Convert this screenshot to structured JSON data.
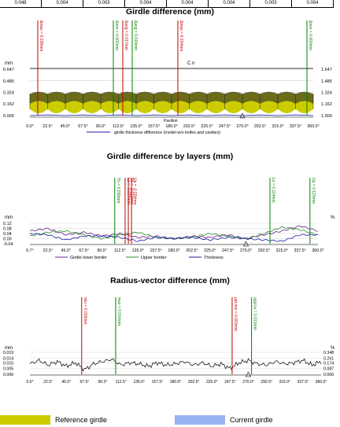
{
  "header_row": [
    "0.048",
    "0.004",
    "0.003",
    "0.004",
    "0.004",
    "0.004",
    "0.003",
    "0.004"
  ],
  "charts": {
    "girdle": {
      "title": "Girdle difference (mm)",
      "yunit": "mm",
      "yticks_left": [
        "0.647",
        "0.485",
        "0.324",
        "0.162",
        "0.000"
      ],
      "yticks_right": [
        "1.647",
        "1.485",
        "1.324",
        "1.162",
        "1.000"
      ],
      "section_label": "Pavilion",
      "crown_label": "C   n",
      "xticks": [
        "0.0°",
        "22.5°",
        "45.0°",
        "67.5°",
        "90.0°",
        "112.5°",
        "135.0°",
        "157.5°",
        "180.0°",
        "202.5°",
        "225.0°",
        "247.5°",
        "270.0°",
        "292.5°",
        "315.0°",
        "337.5°",
        "360.0°"
      ],
      "legend_line": "girdle thickness difference (model w/o knifes and cavities)",
      "markers": [
        {
          "label": "Δmax = 0.038mm",
          "angle": 10,
          "color": "#c00000"
        },
        {
          "label": "Δmin = 0.000mm",
          "angle": 106,
          "color": "#008000"
        },
        {
          "label": "Δavg = 0.017mm",
          "angle": 118,
          "color": "#c00000"
        },
        {
          "label": "Δavg = 0.019mm",
          "angle": 130,
          "color": "#008000"
        },
        {
          "label": "Δmax = 0.034mm",
          "angle": 188,
          "color": "#c00000"
        },
        {
          "label": "Δmin = 0.000mm",
          "angle": 352,
          "color": "#008000"
        }
      ]
    },
    "layers": {
      "title": "Girdle difference by layers (mm)",
      "yunit": "mm",
      "yunit_right": "%",
      "yticks_left": [
        "0.12",
        "0.08",
        "0.04",
        "0.00",
        "-0.04"
      ],
      "xticks": [
        "0.7°",
        "22.5°",
        "45.0°",
        "67.5°",
        "90.0°",
        "112.5°",
        "135.0°",
        "157.5°",
        "180.0°",
        "202.5°",
        "225.0°",
        "247.5°",
        "270.0°",
        "292.5°",
        "315.0°",
        "337.5°",
        "360.0°"
      ],
      "legend": [
        "Girdle lower border",
        "Upper border",
        "Thickness"
      ],
      "markers": [
        {
          "label": "Th = 0.039mm",
          "angle": 106,
          "color": "#008000"
        },
        {
          "label": "Lo = -0.034mm",
          "angle": 119,
          "color": "#c00000"
        },
        {
          "label": "Th = -0.019mm",
          "angle": 123,
          "color": "#c00000"
        },
        {
          "label": "Up = -0.034mm",
          "angle": 127,
          "color": "#c00000"
        },
        {
          "label": "Lo = 0.114mm",
          "angle": 300,
          "color": "#008000"
        },
        {
          "label": "Up = 0.123mm",
          "angle": 350,
          "color": "#008000"
        }
      ]
    },
    "radius": {
      "title": "Radius-vector difference (mm)",
      "yunit": "mm",
      "yunit_right": "%",
      "yticks_left": [
        "0.019",
        "0.014",
        "0.010",
        "0.005",
        "0.000"
      ],
      "yticks_right": [
        "0.348",
        "0.261",
        "0.174",
        "0.087",
        "0.000"
      ],
      "xticks": [
        "0.0°",
        "22.5°",
        "45.0°",
        "67.5°",
        "90.0°",
        "112.5°",
        "135.0°",
        "157.5°",
        "180.0°",
        "202.5°",
        "225.0°",
        "247.5°",
        "270.0°",
        "292.5°",
        "315.0°",
        "337.5°",
        "360.0°"
      ],
      "markers": [
        {
          "label": "min = 0.002mm",
          "angle": 64,
          "color": "#c00000"
        },
        {
          "label": "max = 0.014mm",
          "angle": 106,
          "color": "#008000"
        },
        {
          "label": "ppt.min = 0.003mm",
          "angle": 250,
          "color": "#c00000"
        },
        {
          "label": "approx = 0.013mm",
          "angle": 274,
          "color": "#008000"
        }
      ]
    }
  },
  "chart_data": [
    {
      "type": "area",
      "title": "Girdle difference (mm)",
      "x": [
        0,
        22.5,
        45,
        67.5,
        90,
        112.5,
        135,
        157.5,
        180,
        202.5,
        225,
        247.5,
        270,
        292.5,
        315,
        337.5,
        360
      ],
      "series": [
        {
          "name": "Reference girdle",
          "values": [
            0.32,
            0.22,
            0.32,
            0.22,
            0.32,
            0.22,
            0.32,
            0.22,
            0.32,
            0.22,
            0.32,
            0.22,
            0.32,
            0.22,
            0.32,
            0.22,
            0.32
          ]
        },
        {
          "name": "Current girdle",
          "values": [
            0.3,
            0.24,
            0.3,
            0.24,
            0.3,
            0.24,
            0.3,
            0.24,
            0.3,
            0.24,
            0.3,
            0.24,
            0.3,
            0.24,
            0.3,
            0.24,
            0.3
          ]
        },
        {
          "name": "girdle thickness difference (model w/o knifes and cavities)",
          "values": [
            0.0,
            0.01,
            0.0,
            0.01,
            0.0,
            0.01,
            0.0,
            0.01,
            0.0,
            0.01,
            0.0,
            0.01,
            0.0,
            0.01,
            0.0,
            0.01,
            0.0
          ]
        }
      ],
      "ylim": [
        0,
        0.647
      ]
    },
    {
      "type": "line",
      "title": "Girdle difference by layers (mm)",
      "x": [
        0,
        22.5,
        45,
        67.5,
        90,
        112.5,
        135,
        157.5,
        180,
        202.5,
        225,
        247.5,
        270,
        292.5,
        315,
        337.5,
        360
      ],
      "series": [
        {
          "name": "Girdle lower border",
          "values": [
            0.06,
            0.08,
            0.03,
            0.05,
            0.02,
            0.04,
            0.01,
            0.02,
            0.0,
            0.02,
            0.01,
            0.03,
            0.0,
            0.03,
            0.06,
            0.1,
            0.06
          ]
        },
        {
          "name": "Upper border",
          "values": [
            0.02,
            0.05,
            0.06,
            0.03,
            0.0,
            0.03,
            0.05,
            0.01,
            0.0,
            0.01,
            0.04,
            0.02,
            0.0,
            0.04,
            0.09,
            0.07,
            0.03
          ]
        },
        {
          "name": "Thickness",
          "values": [
            0.04,
            0.03,
            -0.01,
            0.02,
            0.02,
            0.01,
            -0.02,
            0.01,
            0.0,
            0.01,
            -0.01,
            0.01,
            0.0,
            -0.01,
            -0.02,
            0.03,
            0.03
          ]
        }
      ],
      "ylim": [
        -0.04,
        0.12
      ]
    },
    {
      "type": "line",
      "title": "Radius-vector difference (mm)",
      "x": [
        0,
        11.25,
        22.5,
        33.75,
        45,
        56.25,
        67.5,
        78.75,
        90,
        101.25,
        112.5,
        123.75,
        135,
        146.25,
        157.5,
        168.75,
        180,
        191.25,
        202.5,
        213.75,
        225,
        236.25,
        247.5,
        258.75,
        270,
        281.25,
        292.5,
        303.75,
        315,
        326.25,
        337.5,
        348.75,
        360
      ],
      "series": [
        {
          "name": "",
          "values": [
            0.009,
            0.012,
            0.008,
            0.011,
            0.007,
            0.01,
            0.004,
            0.009,
            0.011,
            0.013,
            0.008,
            0.01,
            0.009,
            0.007,
            0.01,
            0.008,
            0.009,
            0.011,
            0.008,
            0.01,
            0.007,
            0.009,
            0.005,
            0.01,
            0.012,
            0.009,
            0.008,
            0.011,
            0.009,
            0.01,
            0.012,
            0.008,
            0.011
          ]
        }
      ],
      "ylim": [
        0,
        0.019
      ]
    }
  ],
  "legend_bottom": {
    "reference": {
      "label": "Reference girdle",
      "color": "#cccc00"
    },
    "current": {
      "label": "Current girdle",
      "color": "#99b3f2"
    }
  }
}
